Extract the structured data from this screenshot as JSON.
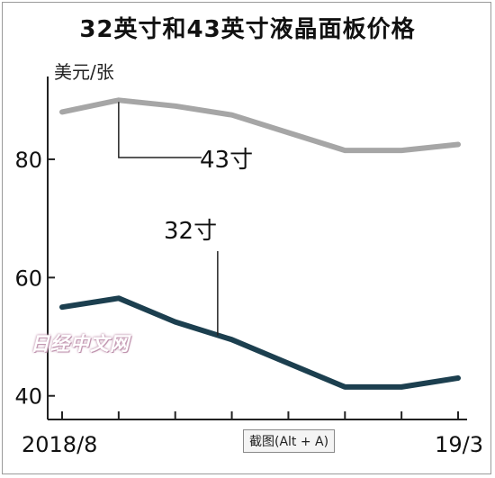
{
  "chart_data": {
    "type": "line",
    "title": "32英寸和43英寸液晶面板价格",
    "ylabel": "美元/张",
    "xlabel": "",
    "ylim": [
      36,
      94
    ],
    "xlim": [
      0,
      7
    ],
    "y_ticks": [
      40,
      60,
      80
    ],
    "x_tick_labels": [
      {
        "x": 0,
        "label": "2018/8"
      },
      {
        "x": 7,
        "label": "19/3"
      }
    ],
    "x": [
      0,
      1,
      2,
      3,
      4,
      5,
      6,
      7
    ],
    "series": [
      {
        "name": "43寸",
        "color": "#a6a6a6",
        "values": [
          88,
          90,
          89,
          87.5,
          84.5,
          81.5,
          81.5,
          82.5
        ]
      },
      {
        "name": "32寸",
        "color": "#1c3f4f",
        "values": [
          55,
          56.5,
          52.5,
          49.5,
          45.5,
          41.5,
          41.5,
          43
        ]
      }
    ],
    "grid": false,
    "legend": "inline-labels"
  },
  "watermark": "日经中文网",
  "tooltip": "截图(Alt + A)"
}
